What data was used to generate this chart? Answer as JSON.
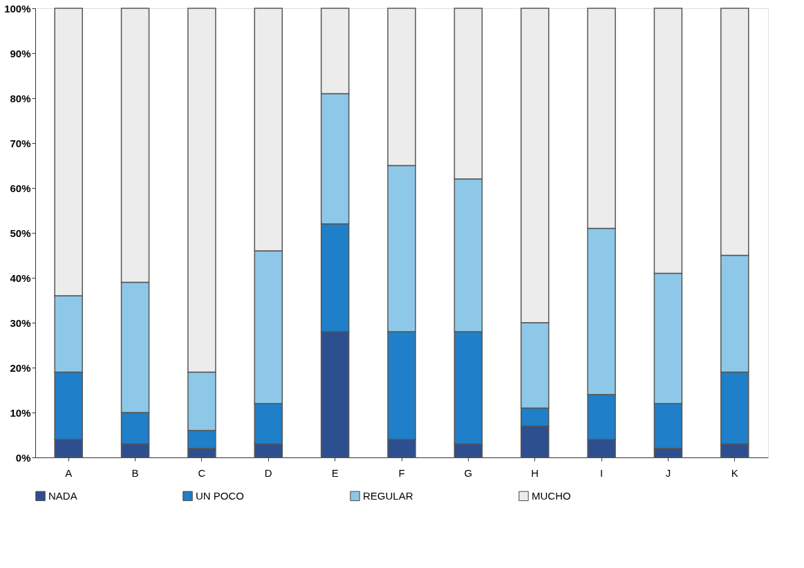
{
  "chart_data": {
    "type": "bar",
    "stacked": true,
    "categories": [
      "A",
      "B",
      "C",
      "D",
      "E",
      "F",
      "G",
      "H",
      "I",
      "J",
      "K"
    ],
    "ylim": [
      0,
      100
    ],
    "yticks": [
      {
        "value": 0,
        "label": "0%"
      },
      {
        "value": 10,
        "label": "10%"
      },
      {
        "value": 20,
        "label": "20%"
      },
      {
        "value": 30,
        "label": "30%"
      },
      {
        "value": 40,
        "label": "40%"
      },
      {
        "value": 50,
        "label": "50%"
      },
      {
        "value": 60,
        "label": "60%"
      },
      {
        "value": 70,
        "label": "70%"
      },
      {
        "value": 80,
        "label": "80%"
      },
      {
        "value": 90,
        "label": "90%"
      },
      {
        "value": 100,
        "label": "100%"
      }
    ],
    "series": [
      {
        "name": "NADA",
        "color": "#2e4f8f",
        "values": [
          4,
          3,
          2,
          3,
          28,
          4,
          3,
          7,
          4,
          2,
          3
        ]
      },
      {
        "name": "UN POCO",
        "color": "#1f7fc8",
        "values": [
          15,
          7,
          4,
          9,
          24,
          24,
          25,
          4,
          10,
          10,
          16
        ]
      },
      {
        "name": "REGULAR",
        "color": "#8ec8e8",
        "values": [
          17,
          29,
          13,
          34,
          29,
          37,
          34,
          19,
          37,
          29,
          26
        ]
      },
      {
        "name": "MUCHO",
        "color": "#ececec",
        "values": [
          64,
          61,
          81,
          54,
          19,
          35,
          38,
          70,
          49,
          59,
          55
        ]
      }
    ],
    "grid": false,
    "legend": "bottom"
  }
}
